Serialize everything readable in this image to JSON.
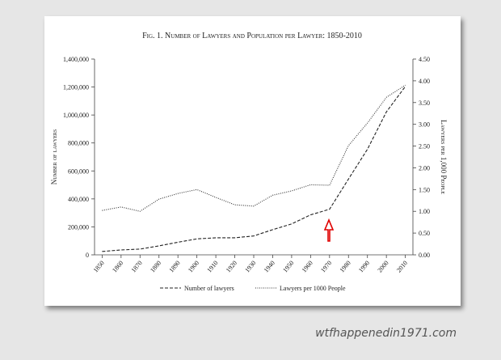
{
  "chart_data": {
    "type": "line",
    "title": "Fig. 1. Number of Lawyers and Population per Lawyer: 1850-2010",
    "ylabel": "Number of lawyers",
    "y2label": "Lawyers per 1,000 People",
    "x": [
      1850,
      1860,
      1870,
      1880,
      1890,
      1900,
      1910,
      1920,
      1930,
      1940,
      1950,
      1960,
      1970,
      1980,
      1990,
      2000,
      2010
    ],
    "xlim": [
      1846,
      2014
    ],
    "xticks": [
      1850,
      1860,
      1870,
      1880,
      1890,
      1900,
      1910,
      1920,
      1930,
      1940,
      1950,
      1960,
      1970,
      1980,
      1990,
      2000,
      2010
    ],
    "ylim": [
      0,
      1400000
    ],
    "yticks": [
      0,
      {
        "value": 200000,
        "label": "200,000"
      },
      {
        "value": 400000,
        "label": "400,000"
      },
      {
        "value": 600000,
        "label": "600,000"
      },
      {
        "value": 800000,
        "label": "800,000"
      },
      {
        "value": 1000000,
        "label": "1,000,000"
      },
      {
        "value": 1200000,
        "label": "1,200,000"
      },
      {
        "value": 1400000,
        "label": "1,400,000"
      }
    ],
    "y2lim": [
      0,
      4.5
    ],
    "y2ticks": [
      {
        "value": 0,
        "label": "0.00"
      },
      {
        "value": 0.5,
        "label": "0.50"
      },
      {
        "value": 1,
        "label": "1.00"
      },
      {
        "value": 1.5,
        "label": "1.50"
      },
      {
        "value": 2,
        "label": "2.00"
      },
      {
        "value": 2.5,
        "label": "2.50"
      },
      {
        "value": 3,
        "label": "3.00"
      },
      {
        "value": 3.5,
        "label": "3.50"
      },
      {
        "value": 4,
        "label": "4.00"
      },
      {
        "value": 4.5,
        "label": "4.50"
      }
    ],
    "series": [
      {
        "name": "Number of lawyers",
        "color": "#222222",
        "dash": "dashed",
        "values": [
          24000,
          35000,
          41000,
          64000,
          90000,
          114000,
          122000,
          122000,
          135000,
          180000,
          221000,
          286000,
          326000,
          542000,
          755000,
          1022000,
          1204000
        ]
      },
      {
        "name": "Lawyers per 1000 People",
        "color": "#333333",
        "dash": "dotted",
        "axis": "y2",
        "values": [
          1.02,
          1.1,
          1.0,
          1.28,
          1.41,
          1.5,
          1.32,
          1.15,
          1.12,
          1.37,
          1.47,
          1.61,
          1.6,
          2.51,
          3.03,
          3.62,
          3.9
        ]
      }
    ],
    "legend": "bottom",
    "watermark": "wtfhappenedin1971.com"
  }
}
